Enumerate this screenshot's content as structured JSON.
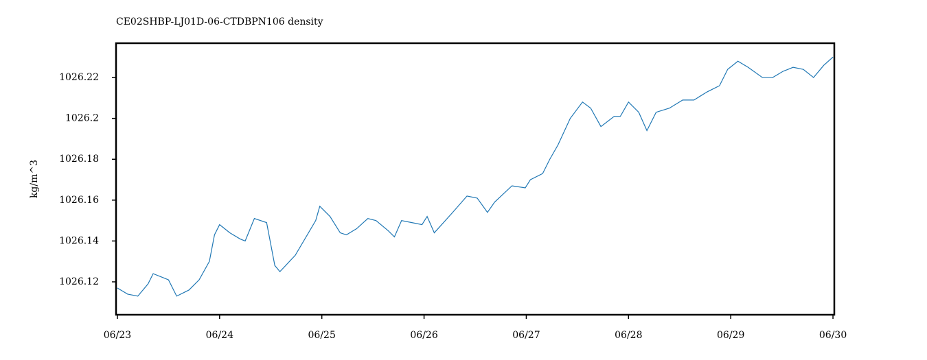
{
  "chart_data": {
    "type": "line",
    "title": "CE02SHBP-LJ01D-06-CTDBPN106 density",
    "y_label": "kg/m^3",
    "x": [
      0.0,
      0.1,
      0.2,
      0.3,
      0.35,
      0.45,
      0.5,
      0.58,
      0.7,
      0.8,
      0.9,
      0.95,
      1.0,
      1.1,
      1.2,
      1.25,
      1.34,
      1.46,
      1.54,
      1.59,
      1.74,
      1.94,
      1.98,
      2.08,
      2.18,
      2.24,
      2.34,
      2.45,
      2.53,
      2.65,
      2.71,
      2.78,
      2.88,
      2.98,
      3.03,
      3.1,
      3.28,
      3.42,
      3.52,
      3.62,
      3.69,
      3.86,
      3.99,
      4.04,
      4.16,
      4.23,
      4.31,
      4.43,
      4.55,
      4.63,
      4.73,
      4.86,
      4.92,
      5.0,
      5.1,
      5.18,
      5.27,
      5.4,
      5.53,
      5.64,
      5.77,
      5.89,
      5.97,
      6.07,
      6.17,
      6.31,
      6.41,
      6.51,
      6.61,
      6.71,
      6.81,
      6.91,
      7.0
    ],
    "series": [
      {
        "name": "density",
        "color": "#1f77b4",
        "values": [
          1026.117,
          1026.114,
          1026.113,
          1026.119,
          1026.124,
          1026.122,
          1026.121,
          1026.113,
          1026.116,
          1026.121,
          1026.13,
          1026.143,
          1026.148,
          1026.144,
          1026.141,
          1026.14,
          1026.151,
          1026.149,
          1026.128,
          1026.125,
          1026.133,
          1026.15,
          1026.157,
          1026.152,
          1026.144,
          1026.143,
          1026.146,
          1026.151,
          1026.15,
          1026.145,
          1026.142,
          1026.15,
          1026.149,
          1026.148,
          1026.152,
          1026.144,
          1026.154,
          1026.162,
          1026.161,
          1026.154,
          1026.159,
          1026.167,
          1026.166,
          1026.17,
          1026.173,
          1026.18,
          1026.187,
          1026.2,
          1026.208,
          1026.205,
          1026.196,
          1026.201,
          1026.201,
          1026.208,
          1026.203,
          1026.194,
          1026.203,
          1026.205,
          1026.209,
          1026.209,
          1026.213,
          1026.216,
          1026.224,
          1026.228,
          1026.225,
          1026.22,
          1026.22,
          1026.223,
          1026.225,
          1026.224,
          1026.22,
          1026.226,
          1026.23
        ]
      }
    ],
    "xlim": [
      -0.013,
      7.013
    ],
    "xticks": [
      {
        "value": 0,
        "label": "06/23"
      },
      {
        "value": 1,
        "label": "06/24"
      },
      {
        "value": 2,
        "label": "06/25"
      },
      {
        "value": 3,
        "label": "06/26"
      },
      {
        "value": 4,
        "label": "06/27"
      },
      {
        "value": 5,
        "label": "06/28"
      },
      {
        "value": 6,
        "label": "06/29"
      },
      {
        "value": 7,
        "label": "06/30"
      }
    ],
    "ylim": [
      1026.1039,
      1026.2368
    ],
    "yticks": [
      1026.12,
      1026.14,
      1026.16,
      1026.18,
      1026.2,
      1026.22
    ],
    "grid": false
  }
}
